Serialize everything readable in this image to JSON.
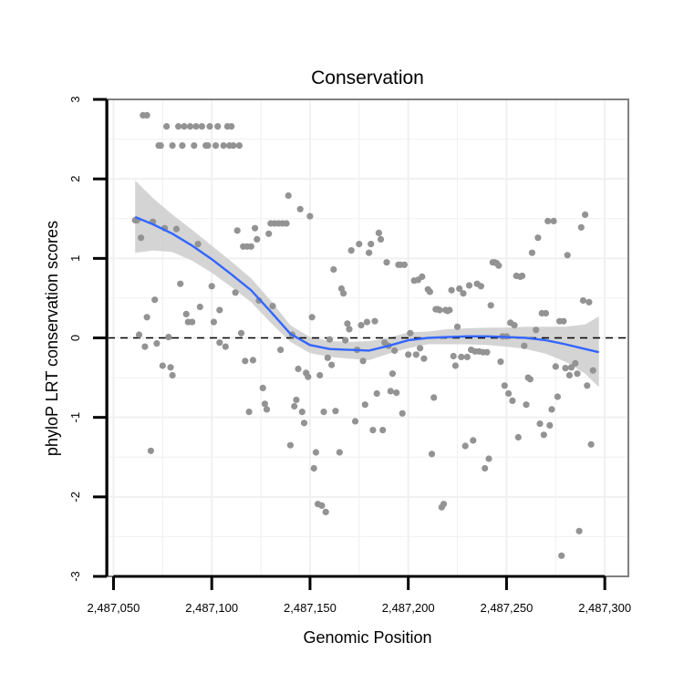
{
  "chart_data": {
    "type": "scatter",
    "title": "Conservation",
    "xlabel": "Genomic Position",
    "ylabel": "phyloP LRT conservation scores",
    "xlim": [
      2487047,
      2487312
    ],
    "ylim": [
      -3,
      3
    ],
    "x_ticks": [
      2487050,
      2487100,
      2487150,
      2487200,
      2487250,
      2487300
    ],
    "x_tick_labels": [
      "2,487,050",
      "2,487,100",
      "2,487,150",
      "2,487,200",
      "2,487,250",
      "2,487,300"
    ],
    "y_ticks": [
      -3,
      -2,
      -1,
      0,
      1,
      2,
      3
    ],
    "y_tick_labels": [
      "-3",
      "-2",
      "-1",
      "0",
      "1",
      "2",
      "3"
    ],
    "grid": true,
    "reference_line": {
      "y": 0,
      "style": "dashed"
    },
    "colors": {
      "points": "#939393",
      "smooth": "#3366ff",
      "band": "#cccccc",
      "panel_border": "#808080",
      "grid": "#f0f0f0"
    },
    "points": [
      [
        2487061,
        1.48
      ],
      [
        2487062,
        1.48
      ],
      [
        2487063,
        0.04
      ],
      [
        2487064,
        1.26
      ],
      [
        2487065,
        2.8
      ],
      [
        2487067,
        2.8
      ],
      [
        2487066,
        -0.11
      ],
      [
        2487067,
        0.26
      ],
      [
        2487069,
        -1.42
      ],
      [
        2487070,
        1.46
      ],
      [
        2487071,
        0.48
      ],
      [
        2487072,
        -0.07
      ],
      [
        2487073,
        2.42
      ],
      [
        2487074,
        2.42
      ],
      [
        2487075,
        -0.35
      ],
      [
        2487076,
        1.38
      ],
      [
        2487077,
        2.66
      ],
      [
        2487078,
        0.01
      ],
      [
        2487079,
        -0.37
      ],
      [
        2487080,
        2.42
      ],
      [
        2487080,
        -0.47
      ],
      [
        2487082,
        1.37
      ],
      [
        2487083,
        2.66
      ],
      [
        2487084,
        0.68
      ],
      [
        2487085,
        2.42
      ],
      [
        2487086,
        2.66
      ],
      [
        2487087,
        0.3
      ],
      [
        2487088,
        0.2
      ],
      [
        2487089,
        2.66
      ],
      [
        2487090,
        0.2
      ],
      [
        2487091,
        2.42
      ],
      [
        2487092,
        2.66
      ],
      [
        2487093,
        1.18
      ],
      [
        2487094,
        0.39
      ],
      [
        2487095,
        2.66
      ],
      [
        2487097,
        2.42
      ],
      [
        2487098,
        2.42
      ],
      [
        2487099,
        2.66
      ],
      [
        2487100,
        0.65
      ],
      [
        2487101,
        0.2
      ],
      [
        2487102,
        2.42
      ],
      [
        2487103,
        2.66
      ],
      [
        2487104,
        -0.06
      ],
      [
        2487104,
        0.35
      ],
      [
        2487106,
        2.42
      ],
      [
        2487107,
        -0.11
      ],
      [
        2487108,
        2.66
      ],
      [
        2487109,
        2.42
      ],
      [
        2487110,
        2.66
      ],
      [
        2487111,
        2.42
      ],
      [
        2487112,
        0.57
      ],
      [
        2487113,
        1.35
      ],
      [
        2487114,
        2.42
      ],
      [
        2487115,
        0.06
      ],
      [
        2487116,
        1.15
      ],
      [
        2487117,
        -0.29
      ],
      [
        2487118,
        1.15
      ],
      [
        2487119,
        -0.93
      ],
      [
        2487120,
        1.15
      ],
      [
        2487121,
        -0.28
      ],
      [
        2487122,
        1.38
      ],
      [
        2487123,
        1.24
      ],
      [
        2487124,
        0.47
      ],
      [
        2487126,
        -0.63
      ],
      [
        2487127,
        -0.83
      ],
      [
        2487128,
        -0.9
      ],
      [
        2487129,
        1.31
      ],
      [
        2487130,
        1.44
      ],
      [
        2487131,
        0.4
      ],
      [
        2487132,
        1.44
      ],
      [
        2487134,
        1.44
      ],
      [
        2487135,
        -0.15
      ],
      [
        2487136,
        1.44
      ],
      [
        2487138,
        1.44
      ],
      [
        2487139,
        1.79
      ],
      [
        2487140,
        -1.35
      ],
      [
        2487141,
        0.04
      ],
      [
        2487142,
        -0.86
      ],
      [
        2487143,
        -0.78
      ],
      [
        2487144,
        -0.39
      ],
      [
        2487145,
        1.62
      ],
      [
        2487146,
        -0.93
      ],
      [
        2487147,
        -1.07
      ],
      [
        2487148,
        -0.44
      ],
      [
        2487149,
        -0.49
      ],
      [
        2487150,
        1.53
      ],
      [
        2487151,
        0.26
      ],
      [
        2487152,
        -1.64
      ],
      [
        2487153,
        -1.44
      ],
      [
        2487154,
        -2.09
      ],
      [
        2487155,
        -0.47
      ],
      [
        2487156,
        -2.11
      ],
      [
        2487157,
        -0.93
      ],
      [
        2487158,
        -2.19
      ],
      [
        2487159,
        -0.25
      ],
      [
        2487160,
        -0.02
      ],
      [
        2487161,
        -0.34
      ],
      [
        2487162,
        0.86
      ],
      [
        2487163,
        -0.92
      ],
      [
        2487165,
        -1.44
      ],
      [
        2487166,
        0.62
      ],
      [
        2487167,
        0.56
      ],
      [
        2487168,
        -0.03
      ],
      [
        2487169,
        0.18
      ],
      [
        2487170,
        0.11
      ],
      [
        2487171,
        1.1
      ],
      [
        2487173,
        -1.05
      ],
      [
        2487174,
        -0.15
      ],
      [
        2487175,
        1.18
      ],
      [
        2487176,
        0.16
      ],
      [
        2487177,
        -0.29
      ],
      [
        2487178,
        -0.84
      ],
      [
        2487179,
        0.2
      ],
      [
        2487180,
        1.07
      ],
      [
        2487181,
        1.18
      ],
      [
        2487182,
        -1.16
      ],
      [
        2487183,
        0.21
      ],
      [
        2487184,
        -0.7
      ],
      [
        2487185,
        1.32
      ],
      [
        2487186,
        1.24
      ],
      [
        2487187,
        -1.16
      ],
      [
        2487188,
        -0.06
      ],
      [
        2487189,
        0.95
      ],
      [
        2487190,
        -0.1
      ],
      [
        2487191,
        -0.67
      ],
      [
        2487192,
        -0.45
      ],
      [
        2487193,
        -0.16
      ],
      [
        2487194,
        -0.69
      ],
      [
        2487195,
        0.92
      ],
      [
        2487196,
        0.92
      ],
      [
        2487197,
        -0.95
      ],
      [
        2487198,
        0.92
      ],
      [
        2487200,
        -0.21
      ],
      [
        2487201,
        0.06
      ],
      [
        2487203,
        0.72
      ],
      [
        2487204,
        -0.21
      ],
      [
        2487205,
        0.73
      ],
      [
        2487206,
        -0.13
      ],
      [
        2487207,
        0.77
      ],
      [
        2487208,
        -0.26
      ],
      [
        2487210,
        0.61
      ],
      [
        2487211,
        0.58
      ],
      [
        2487212,
        -1.46
      ],
      [
        2487213,
        -0.75
      ],
      [
        2487214,
        0.36
      ],
      [
        2487215,
        0.36
      ],
      [
        2487216,
        0.35
      ],
      [
        2487217,
        -2.13
      ],
      [
        2487218,
        -2.09
      ],
      [
        2487219,
        0.35
      ],
      [
        2487220,
        0.34
      ],
      [
        2487221,
        0.35
      ],
      [
        2487222,
        0.6
      ],
      [
        2487223,
        -0.23
      ],
      [
        2487224,
        -0.35
      ],
      [
        2487225,
        0.14
      ],
      [
        2487226,
        0.62
      ],
      [
        2487227,
        -0.24
      ],
      [
        2487228,
        0.56
      ],
      [
        2487229,
        -1.36
      ],
      [
        2487230,
        -0.24
      ],
      [
        2487231,
        0.66
      ],
      [
        2487232,
        -0.15
      ],
      [
        2487233,
        -1.29
      ],
      [
        2487234,
        -0.17
      ],
      [
        2487235,
        0.68
      ],
      [
        2487236,
        -0.17
      ],
      [
        2487237,
        0.65
      ],
      [
        2487238,
        -0.18
      ],
      [
        2487239,
        -1.64
      ],
      [
        2487240,
        -0.18
      ],
      [
        2487241,
        -1.52
      ],
      [
        2487242,
        0.41
      ],
      [
        2487243,
        0.95
      ],
      [
        2487244,
        0.95
      ],
      [
        2487245,
        0.94
      ],
      [
        2487246,
        0.91
      ],
      [
        2487247,
        -0.3
      ],
      [
        2487248,
        0.02
      ],
      [
        2487249,
        -0.6
      ],
      [
        2487250,
        0.02
      ],
      [
        2487251,
        -0.7
      ],
      [
        2487252,
        0.19
      ],
      [
        2487253,
        -0.79
      ],
      [
        2487254,
        0.16
      ],
      [
        2487255,
        0.78
      ],
      [
        2487256,
        -1.25
      ],
      [
        2487257,
        0.77
      ],
      [
        2487258,
        0.78
      ],
      [
        2487259,
        -0.1
      ],
      [
        2487260,
        -0.84
      ],
      [
        2487261,
        -0.5
      ],
      [
        2487262,
        -0.52
      ],
      [
        2487263,
        1.07
      ],
      [
        2487265,
        0.1
      ],
      [
        2487266,
        1.26
      ],
      [
        2487267,
        -1.08
      ],
      [
        2487268,
        0.31
      ],
      [
        2487269,
        -1.22
      ],
      [
        2487270,
        0.31
      ],
      [
        2487271,
        1.47
      ],
      [
        2487272,
        -1.1
      ],
      [
        2487273,
        -0.9
      ],
      [
        2487274,
        1.47
      ],
      [
        2487275,
        -0.36
      ],
      [
        2487276,
        -0.74
      ],
      [
        2487277,
        0.21
      ],
      [
        2487278,
        -2.74
      ],
      [
        2487279,
        0.21
      ],
      [
        2487280,
        -0.38
      ],
      [
        2487281,
        1.04
      ],
      [
        2487282,
        -0.47
      ],
      [
        2487283,
        -0.37
      ],
      [
        2487285,
        -0.32
      ],
      [
        2487286,
        -0.45
      ],
      [
        2487287,
        -2.43
      ],
      [
        2487288,
        1.39
      ],
      [
        2487289,
        0.47
      ],
      [
        2487290,
        1.55
      ],
      [
        2487291,
        -0.6
      ],
      [
        2487292,
        0.45
      ],
      [
        2487293,
        -1.34
      ],
      [
        2487294,
        -0.41
      ]
    ],
    "smooth_line": {
      "x": [
        2487061,
        2487070,
        2487080,
        2487090,
        2487100,
        2487110,
        2487120,
        2487130,
        2487140,
        2487150,
        2487160,
        2487170,
        2487180,
        2487190,
        2487200,
        2487210,
        2487220,
        2487230,
        2487240,
        2487250,
        2487260,
        2487270,
        2487280,
        2487290,
        2487297
      ],
      "y": [
        1.52,
        1.43,
        1.31,
        1.16,
        0.99,
        0.8,
        0.6,
        0.33,
        0.05,
        -0.09,
        -0.14,
        -0.15,
        -0.16,
        -0.1,
        -0.03,
        0.0,
        0.01,
        0.02,
        0.02,
        0.01,
        0.0,
        -0.03,
        -0.08,
        -0.14,
        -0.18
      ],
      "lower": [
        1.07,
        1.1,
        1.08,
        0.97,
        0.82,
        0.64,
        0.45,
        0.19,
        -0.05,
        -0.19,
        -0.24,
        -0.26,
        -0.28,
        -0.2,
        -0.13,
        -0.08,
        -0.08,
        -0.08,
        -0.09,
        -0.11,
        -0.14,
        -0.2,
        -0.3,
        -0.45,
        -0.62
      ],
      "upper": [
        1.98,
        1.76,
        1.55,
        1.36,
        1.16,
        0.96,
        0.75,
        0.47,
        0.16,
        0.01,
        -0.04,
        -0.05,
        -0.04,
        0.0,
        0.07,
        0.08,
        0.11,
        0.12,
        0.13,
        0.13,
        0.14,
        0.14,
        0.14,
        0.17,
        0.27
      ]
    }
  }
}
